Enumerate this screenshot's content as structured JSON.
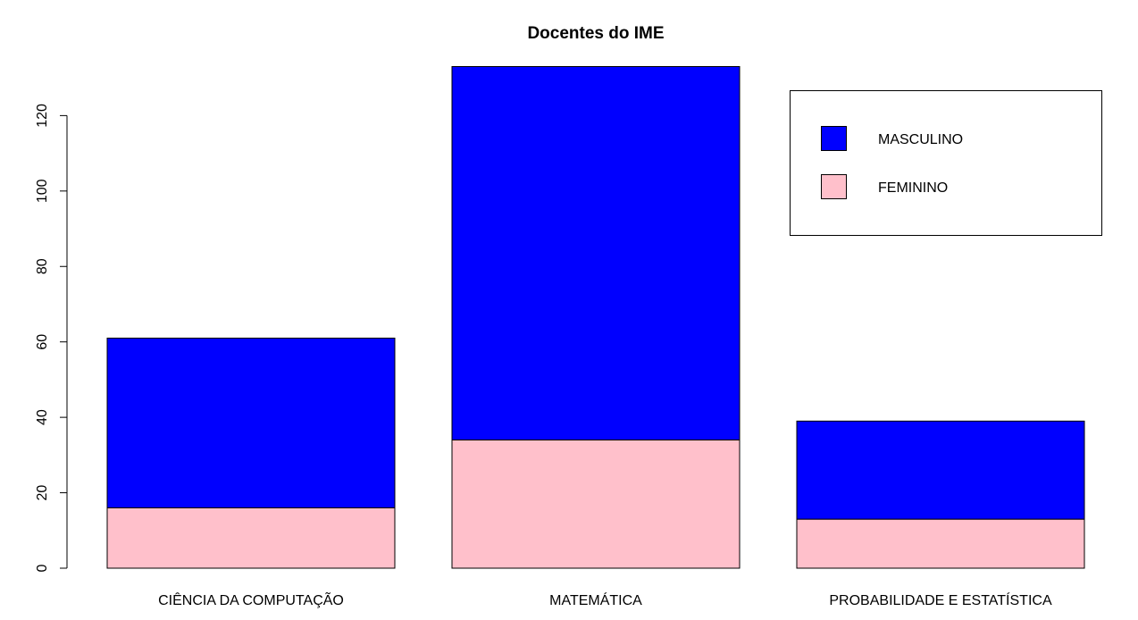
{
  "chart_data": {
    "type": "bar",
    "stacked": true,
    "title": "Docentes do IME",
    "xlabel": "",
    "ylabel": "",
    "categories": [
      "CIÊNCIA DA COMPUTAÇÃO",
      "MATEMÁTICA",
      "PROBABILIDADE E ESTATÍSTICA"
    ],
    "series": [
      {
        "name": "FEMININO",
        "values": [
          16,
          34,
          13
        ],
        "color": "#ffc0cb"
      },
      {
        "name": "MASCULINO",
        "values": [
          45,
          99,
          26
        ],
        "color": "#0000ff"
      }
    ],
    "ylim": [
      0,
      133
    ],
    "yticks": [
      0,
      20,
      40,
      60,
      80,
      100,
      120
    ],
    "grid": false,
    "legend": {
      "placement": "top-right",
      "entries": [
        {
          "label": "MASCULINO",
          "color": "#0000ff"
        },
        {
          "label": "FEMININO",
          "color": "#ffc0cb"
        }
      ]
    }
  }
}
